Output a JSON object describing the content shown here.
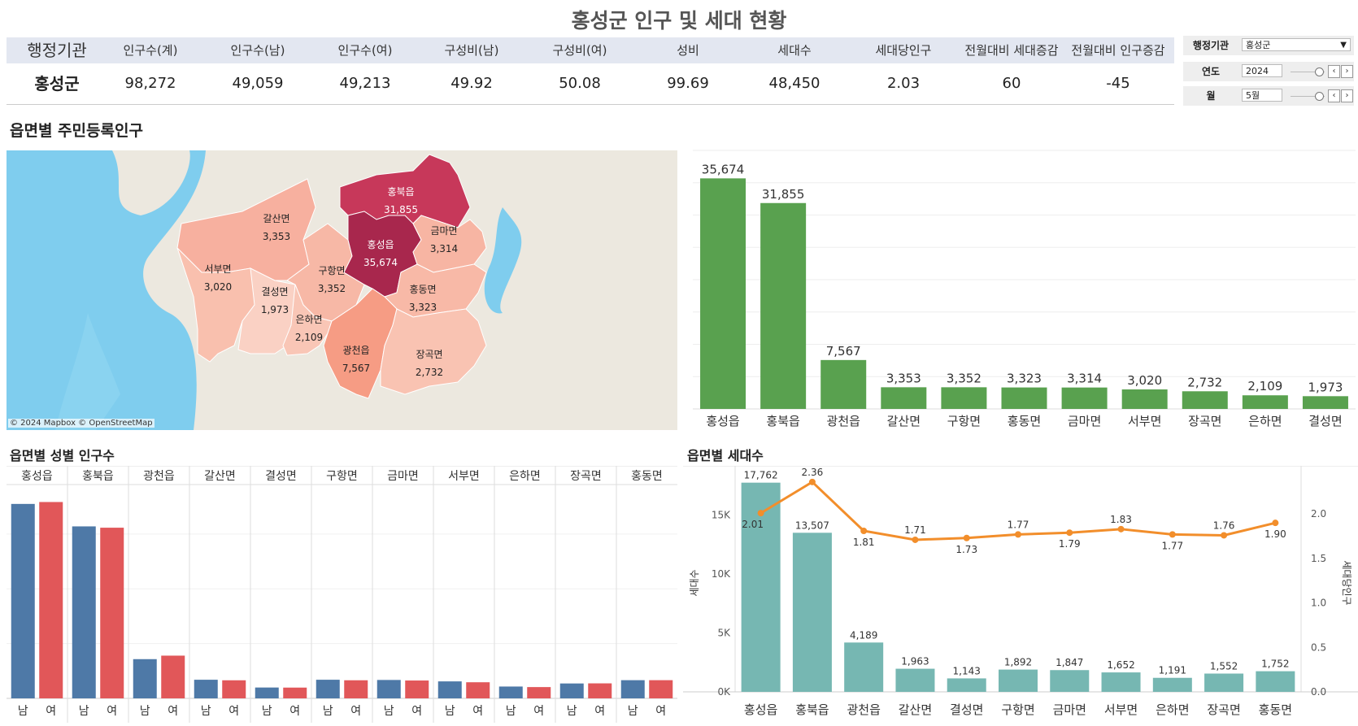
{
  "title": "홍성군 인구 및 세대 현황",
  "kpi": {
    "headers": [
      "행정기관",
      "인구수(계)",
      "인구수(남)",
      "인구수(여)",
      "구성비(남)",
      "구성비(여)",
      "성비",
      "세대수",
      "세대당인구",
      "전월대비 세대증감",
      "전월대비 인구증감"
    ],
    "values": [
      "홍성군",
      "98,272",
      "49,059",
      "49,213",
      "49.92",
      "50.08",
      "99.69",
      "48,450",
      "2.03",
      "60",
      "-45"
    ]
  },
  "filters": {
    "agency": {
      "label": "행정기관",
      "value": "홍성군"
    },
    "year": {
      "label": "연도",
      "value": "2024"
    },
    "month": {
      "label": "월",
      "value": "5월"
    }
  },
  "icons": {
    "dropdown": "chevron-down-icon",
    "prev": "chevron-left-icon",
    "next": "chevron-right-icon"
  },
  "map_section": {
    "title": "읍면별 주민등록인구",
    "credit": "© 2024 Mapbox  © OpenStreetMap",
    "regions": [
      {
        "name": "홍북읍",
        "value": "31,855"
      },
      {
        "name": "갈산면",
        "value": "3,353"
      },
      {
        "name": "금마면",
        "value": "3,314"
      },
      {
        "name": "홍성읍",
        "value": "35,674"
      },
      {
        "name": "서부면",
        "value": "3,020"
      },
      {
        "name": "구항면",
        "value": "3,352"
      },
      {
        "name": "결성면",
        "value": "1,973"
      },
      {
        "name": "홍동면",
        "value": "3,323"
      },
      {
        "name": "은하면",
        "value": "2,109"
      },
      {
        "name": "광천읍",
        "value": "7,567"
      },
      {
        "name": "장곡면",
        "value": "2,732"
      }
    ]
  },
  "gender_section": {
    "title": "읍면별 성별 인구수"
  },
  "household_section": {
    "title": "읍면별 세대수"
  },
  "colors": {
    "green": "#59a14f",
    "blue": "#4e79a7",
    "red": "#e15759",
    "teal": "#76b7b2",
    "orange": "#f28e2b",
    "kpi_header": "#e3e7f1"
  },
  "chart_data": [
    {
      "type": "bar",
      "categories": [
        "홍성읍",
        "홍북읍",
        "광천읍",
        "갈산면",
        "구항면",
        "홍동면",
        "금마면",
        "서부면",
        "장곡면",
        "은하면",
        "결성면"
      ],
      "values": [
        35674,
        31855,
        7567,
        3353,
        3352,
        3323,
        3314,
        3020,
        2732,
        2109,
        1973
      ],
      "labels": [
        "35,674",
        "31,855",
        "7,567",
        "3,353",
        "3,352",
        "3,323",
        "3,314",
        "3,020",
        "2,732",
        "2,109",
        "1,973"
      ],
      "ylim": [
        0,
        40000
      ],
      "grid": true
    },
    {
      "type": "bar",
      "categories": [
        "홍성읍",
        "홍북읍",
        "광천읍",
        "갈산면",
        "결성면",
        "구항면",
        "금마면",
        "서부면",
        "은하면",
        "장곡면",
        "홍동면"
      ],
      "sub_categories": [
        "남",
        "여"
      ],
      "series": [
        {
          "name": "남",
          "values": [
            17750,
            15700,
            3580,
            1700,
            990,
            1700,
            1680,
            1550,
            1080,
            1360,
            1660
          ]
        },
        {
          "name": "여",
          "values": [
            17924,
            15580,
            3900,
            1650,
            983,
            1652,
            1630,
            1470,
            1030,
            1370,
            1660
          ]
        }
      ],
      "ylim": [
        0,
        19000
      ],
      "grid": true
    },
    {
      "type": "bar",
      "categories": [
        "홍성읍",
        "홍북읍",
        "광천읍",
        "갈산면",
        "결성면",
        "구항면",
        "금마면",
        "서부면",
        "은하면",
        "장곡면",
        "홍동면"
      ],
      "series": [
        {
          "name": "세대수",
          "values": [
            17762,
            13507,
            4189,
            1963,
            1143,
            1892,
            1847,
            1652,
            1191,
            1552,
            1752
          ],
          "labels": [
            "17,762",
            "13,507",
            "4,189",
            "1,963",
            "1,143",
            "1,892",
            "1,847",
            "1,652",
            "1,191",
            "1,552",
            "1,752"
          ],
          "axis": "left"
        },
        {
          "name": "세대당인구",
          "type": "line",
          "values": [
            2.01,
            2.36,
            1.81,
            1.71,
            1.73,
            1.77,
            1.79,
            1.83,
            1.77,
            1.76,
            1.9
          ],
          "labels": [
            "2.01",
            "2.36",
            "1.81",
            "1.71",
            "1.73",
            "1.77",
            "1.79",
            "1.83",
            "1.77",
            "1.76",
            "1.90"
          ],
          "axis": "right"
        }
      ],
      "ylabel": "세대수",
      "y2label": "세대당인구",
      "yticks": [
        {
          "v": 0,
          "t": "0K"
        },
        {
          "v": 5000,
          "t": "5K"
        },
        {
          "v": 10000,
          "t": "10K"
        },
        {
          "v": 15000,
          "t": "15K"
        }
      ],
      "y2ticks": [
        {
          "v": 0,
          "t": "0.0"
        },
        {
          "v": 0.5,
          "t": "0.5"
        },
        {
          "v": 1.0,
          "t": "1.0"
        },
        {
          "v": 1.5,
          "t": "1.5"
        },
        {
          "v": 2.0,
          "t": "2.0"
        }
      ],
      "ylim": [
        0,
        18500
      ],
      "y2lim": [
        0,
        2.45
      ]
    }
  ]
}
